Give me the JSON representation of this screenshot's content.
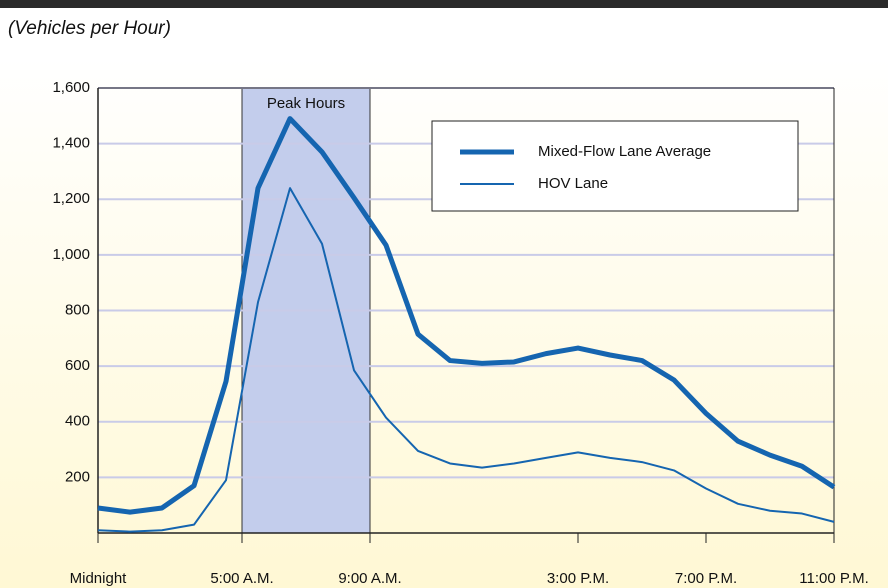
{
  "chart_data": {
    "type": "line",
    "subtitle": "(Vehicles per Hour)",
    "x": [
      0,
      1,
      2,
      3,
      4,
      5,
      6,
      7,
      8,
      9,
      10,
      11,
      12,
      13,
      14,
      15,
      16,
      17,
      18,
      19,
      20,
      21,
      22,
      23
    ],
    "series": [
      {
        "name": "Mixed-Flow Lane Average",
        "color": "#1565b0",
        "width": 5,
        "values": [
          90,
          75,
          90,
          170,
          545,
          1240,
          1490,
          1370,
          1205,
          1035,
          715,
          620,
          610,
          615,
          645,
          665,
          640,
          620,
          550,
          430,
          330,
          280,
          240,
          165
        ]
      },
      {
        "name": "HOV Lane",
        "color": "#1565b0",
        "width": 2,
        "values": [
          10,
          5,
          10,
          30,
          190,
          830,
          1240,
          1040,
          585,
          415,
          295,
          250,
          235,
          250,
          270,
          290,
          270,
          255,
          225,
          160,
          105,
          80,
          70,
          40
        ]
      }
    ],
    "xlim": [
      0,
      23
    ],
    "xticks": [
      {
        "value": 0,
        "label": "Midnight"
      },
      {
        "value": 4.5,
        "label": "5:00 A.M."
      },
      {
        "value": 8.5,
        "label": "9:00 A.M."
      },
      {
        "value": 15,
        "label": "3:00 P.M."
      },
      {
        "value": 19,
        "label": "7:00 P.M."
      },
      {
        "value": 23,
        "label": "11:00 P.M."
      }
    ],
    "ylim": [
      0,
      1600
    ],
    "yticks": [
      200,
      400,
      600,
      800,
      {
        "value": 1000,
        "label": "1,000"
      },
      {
        "value": 1200,
        "label": "1,200"
      },
      {
        "value": 1400,
        "label": "1,400"
      },
      {
        "value": 1600,
        "label": "1,600"
      }
    ],
    "grid": true,
    "shade": {
      "label": "Peak Hours",
      "from": 4.5,
      "to": 8.5,
      "color": "#c3cdec"
    },
    "legend": "upper right"
  }
}
